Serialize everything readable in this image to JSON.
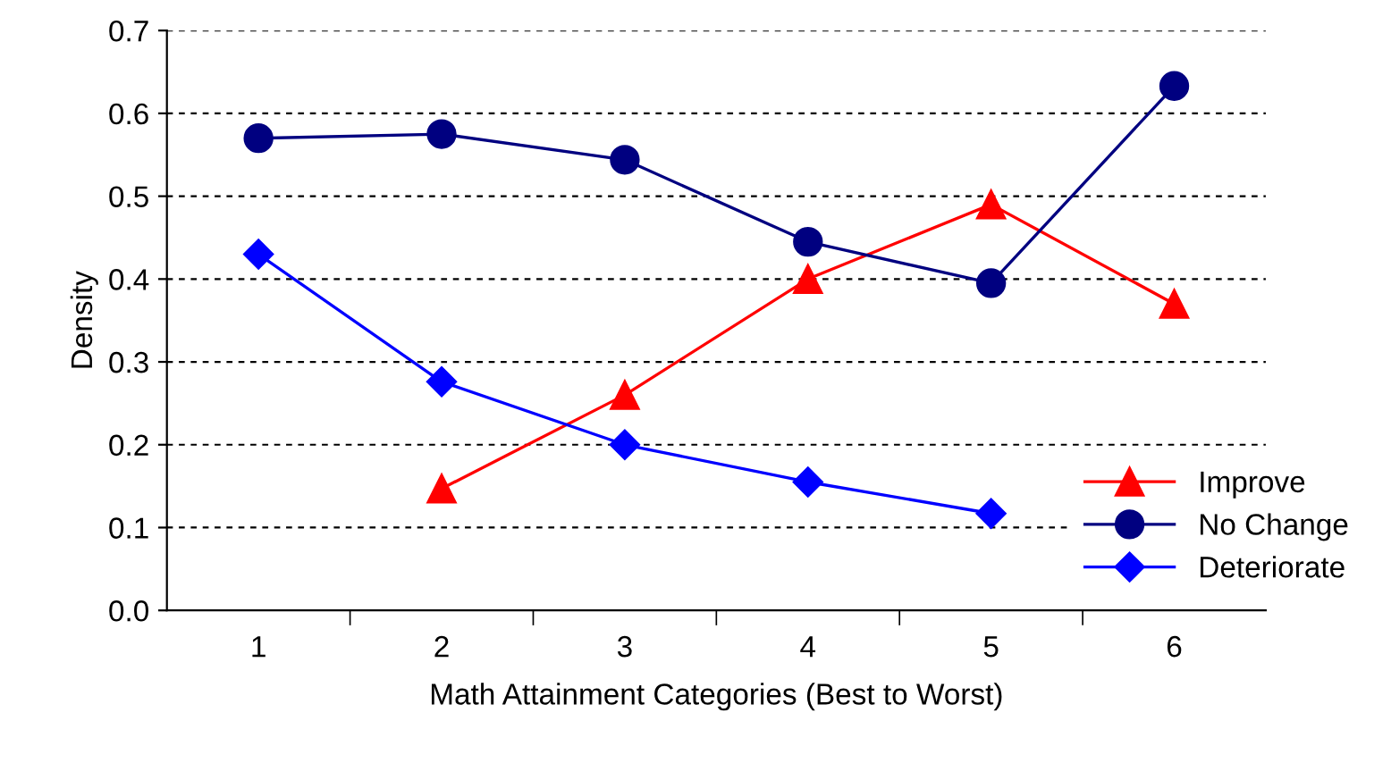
{
  "chart_data": {
    "type": "line",
    "xlabel": "Math Attainment Categories (Best to Worst)",
    "ylabel": "Density",
    "categories": [
      "1",
      "2",
      "3",
      "4",
      "5",
      "6"
    ],
    "series": [
      {
        "name": "Improve",
        "color": "#ff0000",
        "marker": "triangle",
        "values": [
          null,
          0.147,
          0.26,
          0.4,
          0.49,
          0.37
        ]
      },
      {
        "name": "No Change",
        "color": "#000080",
        "marker": "circle",
        "values": [
          0.57,
          0.575,
          0.544,
          0.445,
          0.395,
          0.633
        ]
      },
      {
        "name": "Deteriorate",
        "color": "#0000ff",
        "marker": "diamond",
        "values": [
          0.43,
          0.276,
          0.2,
          0.155,
          0.117,
          null
        ]
      }
    ],
    "ylim": [
      0,
      0.7
    ],
    "yticks": [
      {
        "value": 0,
        "label": "0.0"
      },
      {
        "value": 0.1,
        "label": "0.1"
      },
      {
        "value": 0.2,
        "label": "0.2"
      },
      {
        "value": 0.3,
        "label": "0.3"
      },
      {
        "value": 0.4,
        "label": "0.4"
      },
      {
        "value": 0.5,
        "label": "0.5"
      },
      {
        "value": 0.6,
        "label": "0.6"
      },
      {
        "value": 0.7,
        "label": "0.7"
      }
    ],
    "grid": "y",
    "legend": "bottom right",
    "line_style": "solid"
  }
}
